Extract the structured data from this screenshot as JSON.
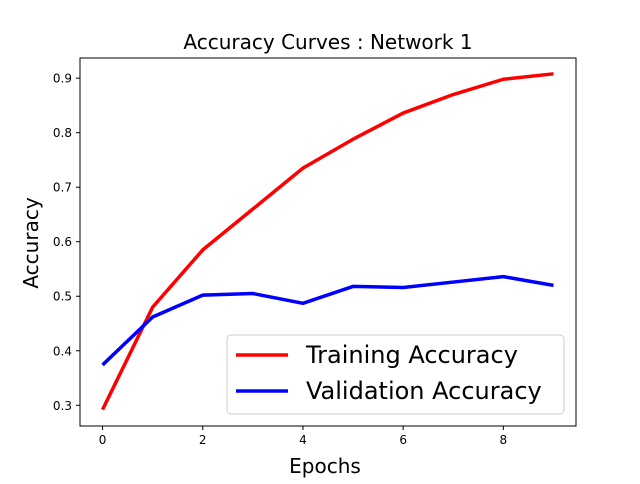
{
  "chart_data": {
    "type": "line",
    "title": "Accuracy Curves : Network 1",
    "xlabel": "Epochs",
    "ylabel": "Accuracy",
    "xlim": [
      -0.45,
      9.45
    ],
    "ylim": [
      0.262,
      0.937
    ],
    "xticks": [
      0,
      2,
      4,
      6,
      8
    ],
    "xtick_labels": [
      "0",
      "2",
      "4",
      "6",
      "8"
    ],
    "yticks": [
      0.3,
      0.4,
      0.5,
      0.6,
      0.7,
      0.8,
      0.9
    ],
    "ytick_labels": [
      "0.3",
      "0.4",
      "0.5",
      "0.6",
      "0.7",
      "0.8",
      "0.9"
    ],
    "grid": false,
    "legend_position": "bottom-right",
    "x": [
      0,
      1,
      2,
      3,
      4,
      5,
      6,
      7,
      8,
      9
    ],
    "series": [
      {
        "name": "Training Accuracy",
        "color": "#ff0000",
        "values": [
          0.292,
          0.48,
          0.585,
          0.66,
          0.735,
          0.788,
          0.836,
          0.87,
          0.898,
          0.908
        ]
      },
      {
        "name": "Validation Accuracy",
        "color": "#0000ff",
        "values": [
          0.374,
          0.462,
          0.502,
          0.505,
          0.487,
          0.518,
          0.516,
          0.526,
          0.536,
          0.52
        ]
      }
    ]
  }
}
